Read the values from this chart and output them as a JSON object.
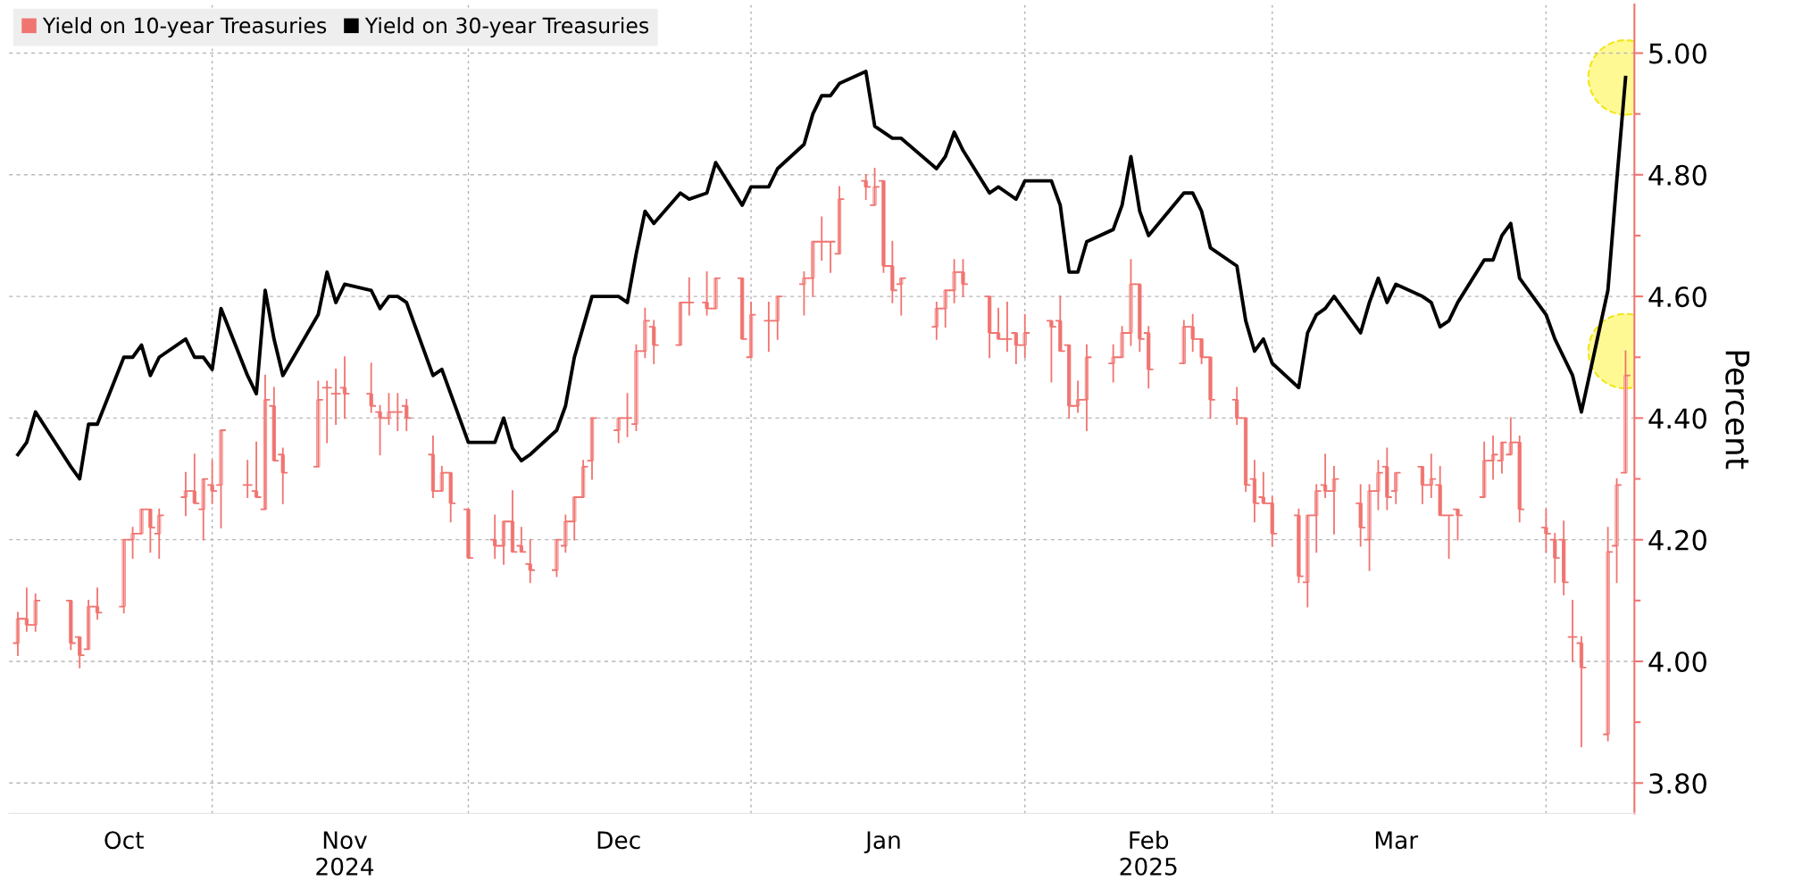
{
  "chart_data": {
    "type": "candlestick",
    "ylabel": "Percent",
    "legend": "top left",
    "marker": "none",
    "line_style": "solid",
    "grid": true,
    "x": [
      "2024-10-09",
      "2024-10-10",
      "2024-10-11",
      "2024-10-15",
      "2024-10-16",
      "2024-10-17",
      "2024-10-18",
      "2024-10-21",
      "2024-10-22",
      "2024-10-23",
      "2024-10-24",
      "2024-10-25",
      "2024-10-28",
      "2024-10-29",
      "2024-10-30",
      "2024-10-31",
      "2024-11-01",
      "2024-11-04",
      "2024-11-05",
      "2024-11-06",
      "2024-11-07",
      "2024-11-08",
      "2024-11-12",
      "2024-11-13",
      "2024-11-14",
      "2024-11-15",
      "2024-11-18",
      "2024-11-19",
      "2024-11-20",
      "2024-11-21",
      "2024-11-22",
      "2024-11-25",
      "2024-11-26",
      "2024-11-27",
      "2024-11-29",
      "2024-12-02",
      "2024-12-03",
      "2024-12-04",
      "2024-12-05",
      "2024-12-06",
      "2024-12-09",
      "2024-12-10",
      "2024-12-11",
      "2024-12-12",
      "2024-12-13",
      "2024-12-16",
      "2024-12-17",
      "2024-12-18",
      "2024-12-19",
      "2024-12-20",
      "2024-12-23",
      "2024-12-24",
      "2024-12-26",
      "2024-12-27",
      "2024-12-30",
      "2024-12-31",
      "2025-01-02",
      "2025-01-03",
      "2025-01-06",
      "2025-01-07",
      "2025-01-08",
      "2025-01-09",
      "2025-01-10",
      "2025-01-13",
      "2025-01-14",
      "2025-01-15",
      "2025-01-16",
      "2025-01-17",
      "2025-01-21",
      "2025-01-22",
      "2025-01-23",
      "2025-01-24",
      "2025-01-27",
      "2025-01-28",
      "2025-01-29",
      "2025-01-30",
      "2025-01-31",
      "2025-02-03",
      "2025-02-04",
      "2025-02-05",
      "2025-02-06",
      "2025-02-07",
      "2025-02-10",
      "2025-02-11",
      "2025-02-12",
      "2025-02-13",
      "2025-02-14",
      "2025-02-18",
      "2025-02-19",
      "2025-02-20",
      "2025-02-21",
      "2025-02-24",
      "2025-02-25",
      "2025-02-26",
      "2025-02-27",
      "2025-02-28",
      "2025-03-03",
      "2025-03-04",
      "2025-03-05",
      "2025-03-06",
      "2025-03-07",
      "2025-03-10",
      "2025-03-11",
      "2025-03-12",
      "2025-03-13",
      "2025-03-14",
      "2025-03-17",
      "2025-03-18",
      "2025-03-19",
      "2025-03-20",
      "2025-03-21",
      "2025-03-24",
      "2025-03-25",
      "2025-03-26",
      "2025-03-27",
      "2025-03-28",
      "2025-03-31",
      "2025-04-01",
      "2025-04-02",
      "2025-04-03",
      "2025-04-04",
      "2025-04-07",
      "2025-04-08",
      "2025-04-09"
    ],
    "xlim": [
      "2024-10-08",
      "2025-04-10"
    ],
    "xticks": [
      {
        "value": "2024-10-21",
        "label": "Oct"
      },
      {
        "value": "2024-10-31",
        "label": null
      },
      {
        "value": "2024-11-15",
        "label": "Nov\n2024"
      },
      {
        "value": "2024-11-29",
        "label": null
      },
      {
        "value": "2024-12-16",
        "label": "Dec"
      },
      {
        "value": "2024-12-31",
        "label": null
      },
      {
        "value": "2025-01-15",
        "label": "Jan"
      },
      {
        "value": "2025-01-31",
        "label": null
      },
      {
        "value": "2025-02-14",
        "label": "Feb\n2025"
      },
      {
        "value": "2025-02-28",
        "label": null
      },
      {
        "value": "2025-03-14",
        "label": "Mar"
      },
      {
        "value": "2025-03-31",
        "label": null
      }
    ],
    "ylim": [
      3.75,
      5.08
    ],
    "yticks": [
      {
        "value": 3.8,
        "label": "3.80"
      },
      {
        "value": 3.9,
        "label": null
      },
      {
        "value": 4.0,
        "label": "4.00"
      },
      {
        "value": 4.1,
        "label": null
      },
      {
        "value": 4.2,
        "label": "4.20"
      },
      {
        "value": 4.3,
        "label": null
      },
      {
        "value": 4.4,
        "label": "4.40"
      },
      {
        "value": 4.5,
        "label": null
      },
      {
        "value": 4.6,
        "label": "4.60"
      },
      {
        "value": 4.7,
        "label": null
      },
      {
        "value": 4.8,
        "label": "4.80"
      },
      {
        "value": 4.9,
        "label": null
      },
      {
        "value": 5.0,
        "label": "5.00"
      }
    ],
    "series": [
      {
        "name": "Yield on 10-year Treasuries",
        "color": "#f07470",
        "ohlc": [
          [
            4.03,
            4.08,
            4.01,
            4.07
          ],
          [
            4.07,
            4.12,
            4.05,
            4.06
          ],
          [
            4.06,
            4.11,
            4.05,
            4.1
          ],
          [
            4.1,
            4.1,
            4.02,
            4.03
          ],
          [
            4.04,
            4.04,
            3.99,
            4.01
          ],
          [
            4.02,
            4.1,
            4.02,
            4.09
          ],
          [
            4.09,
            4.12,
            4.07,
            4.08
          ],
          [
            4.09,
            4.2,
            4.08,
            4.2
          ],
          [
            4.2,
            4.22,
            4.17,
            4.21
          ],
          [
            4.21,
            4.25,
            4.21,
            4.25
          ],
          [
            4.25,
            4.25,
            4.18,
            4.22
          ],
          [
            4.21,
            4.25,
            4.17,
            4.24
          ],
          [
            4.27,
            4.31,
            4.24,
            4.28
          ],
          [
            4.28,
            4.34,
            4.26,
            4.26
          ],
          [
            4.25,
            4.3,
            4.2,
            4.3
          ],
          [
            4.29,
            4.33,
            4.26,
            4.28
          ],
          [
            4.29,
            4.38,
            4.22,
            4.38
          ],
          [
            4.29,
            4.33,
            4.27,
            4.29
          ],
          [
            4.28,
            4.36,
            4.27,
            4.27
          ],
          [
            4.25,
            4.47,
            4.25,
            4.43
          ],
          [
            4.42,
            4.45,
            4.33,
            4.33
          ],
          [
            4.34,
            4.35,
            4.26,
            4.31
          ],
          [
            4.32,
            4.46,
            4.32,
            4.43
          ],
          [
            4.45,
            4.46,
            4.36,
            4.45
          ],
          [
            4.44,
            4.48,
            4.39,
            4.44
          ],
          [
            4.45,
            4.5,
            4.4,
            4.44
          ],
          [
            4.44,
            4.49,
            4.41,
            4.42
          ],
          [
            4.41,
            4.42,
            4.34,
            4.4
          ],
          [
            4.4,
            4.44,
            4.39,
            4.41
          ],
          [
            4.41,
            4.44,
            4.38,
            4.41
          ],
          [
            4.42,
            4.43,
            4.38,
            4.4
          ],
          [
            4.34,
            4.37,
            4.27,
            4.28
          ],
          [
            4.28,
            4.32,
            4.28,
            4.31
          ],
          [
            4.31,
            4.31,
            4.23,
            4.26
          ],
          [
            4.25,
            4.25,
            4.17,
            4.17
          ],
          [
            4.2,
            4.24,
            4.17,
            4.19
          ],
          [
            4.19,
            4.23,
            4.16,
            4.23
          ],
          [
            4.23,
            4.28,
            4.18,
            4.18
          ],
          [
            4.19,
            4.22,
            4.18,
            4.18
          ],
          [
            4.16,
            4.2,
            4.13,
            4.15
          ],
          [
            4.15,
            4.2,
            4.14,
            4.2
          ],
          [
            4.19,
            4.24,
            4.18,
            4.23
          ],
          [
            4.23,
            4.27,
            4.2,
            4.27
          ],
          [
            4.27,
            4.33,
            4.27,
            4.32
          ],
          [
            4.33,
            4.4,
            4.3,
            4.4
          ],
          [
            4.38,
            4.4,
            4.36,
            4.4
          ],
          [
            4.4,
            4.44,
            4.37,
            4.4
          ],
          [
            4.39,
            4.52,
            4.38,
            4.51
          ],
          [
            4.51,
            4.58,
            4.5,
            4.56
          ],
          [
            4.55,
            4.56,
            4.49,
            4.52
          ],
          [
            4.52,
            4.59,
            4.52,
            4.59
          ],
          [
            4.59,
            4.63,
            4.57,
            4.59
          ],
          [
            4.59,
            4.64,
            4.57,
            4.58
          ],
          [
            4.58,
            4.63,
            4.58,
            4.63
          ],
          [
            4.63,
            4.63,
            4.53,
            4.53
          ],
          [
            4.5,
            4.59,
            4.5,
            4.57
          ],
          [
            4.56,
            4.59,
            4.51,
            4.56
          ],
          [
            4.56,
            4.6,
            4.53,
            4.6
          ],
          [
            4.62,
            4.64,
            4.57,
            4.63
          ],
          [
            4.63,
            4.69,
            4.6,
            4.69
          ],
          [
            4.69,
            4.73,
            4.66,
            4.69
          ],
          [
            4.69,
            4.69,
            4.64,
            4.69
          ],
          [
            4.67,
            4.78,
            4.67,
            4.76
          ],
          [
            4.79,
            4.8,
            4.76,
            4.78
          ],
          [
            4.75,
            4.81,
            4.75,
            4.78
          ],
          [
            4.79,
            4.79,
            4.64,
            4.65
          ],
          [
            4.65,
            4.69,
            4.59,
            4.61
          ],
          [
            4.62,
            4.63,
            4.57,
            4.63
          ],
          [
            4.55,
            4.59,
            4.53,
            4.58
          ],
          [
            4.58,
            4.61,
            4.55,
            4.61
          ],
          [
            4.61,
            4.66,
            4.59,
            4.64
          ],
          [
            4.64,
            4.66,
            4.6,
            4.62
          ],
          [
            4.6,
            4.6,
            4.5,
            4.54
          ],
          [
            4.54,
            4.58,
            4.53,
            4.53
          ],
          [
            4.53,
            4.59,
            4.51,
            4.53
          ],
          [
            4.54,
            4.54,
            4.49,
            4.52
          ],
          [
            4.52,
            4.57,
            4.5,
            4.54
          ],
          [
            4.56,
            4.56,
            4.46,
            4.55
          ],
          [
            4.56,
            4.6,
            4.51,
            4.51
          ],
          [
            4.52,
            4.52,
            4.4,
            4.42
          ],
          [
            4.42,
            4.46,
            4.41,
            4.43
          ],
          [
            4.43,
            4.52,
            4.38,
            4.5
          ],
          [
            4.49,
            4.52,
            4.46,
            4.5
          ],
          [
            4.5,
            4.55,
            4.5,
            4.54
          ],
          [
            4.54,
            4.66,
            4.52,
            4.62
          ],
          [
            4.62,
            4.62,
            4.51,
            4.53
          ],
          [
            4.54,
            4.55,
            4.45,
            4.48
          ],
          [
            4.49,
            4.56,
            4.49,
            4.55
          ],
          [
            4.55,
            4.57,
            4.51,
            4.53
          ],
          [
            4.53,
            4.53,
            4.49,
            4.5
          ],
          [
            4.5,
            4.5,
            4.4,
            4.43
          ],
          [
            4.43,
            4.45,
            4.39,
            4.4
          ],
          [
            4.4,
            4.4,
            4.28,
            4.29
          ],
          [
            4.3,
            4.33,
            4.23,
            4.26
          ],
          [
            4.27,
            4.31,
            4.26,
            4.26
          ],
          [
            4.26,
            4.27,
            4.19,
            4.21
          ],
          [
            4.24,
            4.25,
            4.13,
            4.14
          ],
          [
            4.13,
            4.24,
            4.09,
            4.24
          ],
          [
            4.24,
            4.29,
            4.18,
            4.28
          ],
          [
            4.29,
            4.34,
            4.27,
            4.28
          ],
          [
            4.28,
            4.32,
            4.21,
            4.3
          ],
          [
            4.26,
            4.29,
            4.19,
            4.22
          ],
          [
            4.2,
            4.29,
            4.15,
            4.28
          ],
          [
            4.28,
            4.33,
            4.25,
            4.31
          ],
          [
            4.32,
            4.35,
            4.25,
            4.27
          ],
          [
            4.28,
            4.31,
            4.26,
            4.31
          ],
          [
            4.32,
            4.32,
            4.26,
            4.29
          ],
          [
            4.29,
            4.34,
            4.27,
            4.3
          ],
          [
            4.29,
            4.32,
            4.24,
            4.24
          ],
          [
            4.24,
            4.24,
            4.17,
            4.24
          ],
          [
            4.25,
            4.25,
            4.2,
            4.24
          ],
          [
            4.27,
            4.36,
            4.27,
            4.33
          ],
          [
            4.33,
            4.37,
            4.3,
            4.34
          ],
          [
            4.33,
            4.36,
            4.31,
            4.36
          ],
          [
            4.34,
            4.4,
            4.34,
            4.36
          ],
          [
            4.36,
            4.37,
            4.23,
            4.25
          ],
          [
            4.22,
            4.25,
            4.18,
            4.21
          ],
          [
            4.2,
            4.21,
            4.13,
            4.17
          ],
          [
            4.2,
            4.23,
            4.11,
            4.13
          ],
          [
            4.04,
            4.1,
            4.0,
            4.04
          ],
          [
            4.03,
            4.04,
            3.86,
            3.99
          ],
          [
            3.88,
            4.22,
            3.87,
            4.18
          ],
          [
            4.19,
            4.3,
            4.13,
            4.29
          ],
          [
            4.31,
            4.51,
            4.31,
            4.47
          ]
        ]
      },
      {
        "name": "Yield on 30-year Treasuries",
        "type": "line",
        "color": "#000000",
        "values": [
          4.34,
          4.36,
          4.41,
          4.32,
          4.3,
          4.39,
          4.39,
          4.5,
          4.5,
          4.52,
          4.47,
          4.5,
          4.53,
          4.5,
          4.5,
          4.48,
          4.58,
          4.47,
          4.44,
          4.61,
          4.53,
          4.47,
          4.57,
          4.64,
          4.59,
          4.62,
          4.61,
          4.58,
          4.6,
          4.6,
          4.59,
          4.47,
          4.48,
          4.44,
          4.36,
          4.36,
          4.4,
          4.35,
          4.33,
          4.34,
          4.38,
          4.42,
          4.5,
          4.55,
          4.6,
          4.6,
          4.59,
          4.67,
          4.74,
          4.72,
          4.77,
          4.76,
          4.77,
          4.82,
          4.75,
          4.78,
          4.78,
          4.81,
          4.85,
          4.9,
          4.93,
          4.93,
          4.95,
          4.97,
          4.88,
          4.87,
          4.86,
          4.86,
          4.81,
          4.83,
          4.87,
          4.84,
          4.77,
          4.78,
          4.77,
          4.76,
          4.79,
          4.79,
          4.75,
          4.64,
          4.64,
          4.69,
          4.71,
          4.75,
          4.83,
          4.74,
          4.7,
          4.77,
          4.77,
          4.74,
          4.68,
          4.65,
          4.56,
          4.51,
          4.53,
          4.49,
          4.45,
          4.54,
          4.57,
          4.58,
          4.6,
          4.54,
          4.59,
          4.63,
          4.59,
          4.62,
          4.6,
          4.59,
          4.55,
          4.56,
          4.59,
          4.66,
          4.66,
          4.7,
          4.72,
          4.63,
          4.57,
          4.53,
          4.5,
          4.47,
          4.41,
          4.61,
          4.79,
          4.96
        ]
      }
    ]
  }
}
